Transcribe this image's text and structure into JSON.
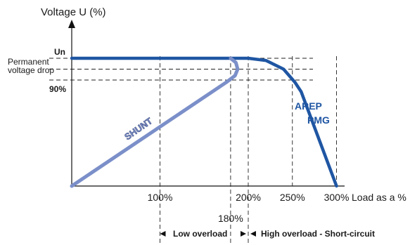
{
  "chart_data": {
    "type": "line",
    "ylabel": "Voltage U (%)",
    "xlabel": "Load as a %",
    "y_tick_labels": [
      "Un",
      "Permanent voltage drop",
      "90%"
    ],
    "x_tick_labels": [
      "100%",
      "180%",
      "200%",
      "250%",
      "300%"
    ],
    "x_ticks": [
      100,
      180,
      200,
      250,
      300
    ],
    "xlim": [
      0,
      330
    ],
    "ylim": [
      0,
      100
    ],
    "y_ref": {
      "un": 100,
      "permanent_drop": 95,
      "ninety": 90
    },
    "grid": "dashed at labeled values",
    "zones": [
      {
        "label": "Low overload",
        "from": 100,
        "to": 200
      },
      {
        "label": "High overload - Short-circuit",
        "from": 200,
        "to": 330
      }
    ],
    "series": [
      {
        "name": "AREP PMG",
        "color": "#1f56a3",
        "points": [
          [
            0,
            100
          ],
          [
            200,
            100
          ],
          [
            220,
            99
          ],
          [
            240,
            95
          ],
          [
            253,
            88
          ],
          [
            260,
            80
          ],
          [
            300,
            0
          ]
        ]
      },
      {
        "name": "SHUNT",
        "color": "#7b8fc9",
        "points": [
          [
            0,
            0
          ],
          [
            175,
            88
          ],
          [
            185,
            92
          ],
          [
            188,
            95
          ],
          [
            186,
            98
          ],
          [
            180,
            100
          ]
        ]
      }
    ]
  }
}
